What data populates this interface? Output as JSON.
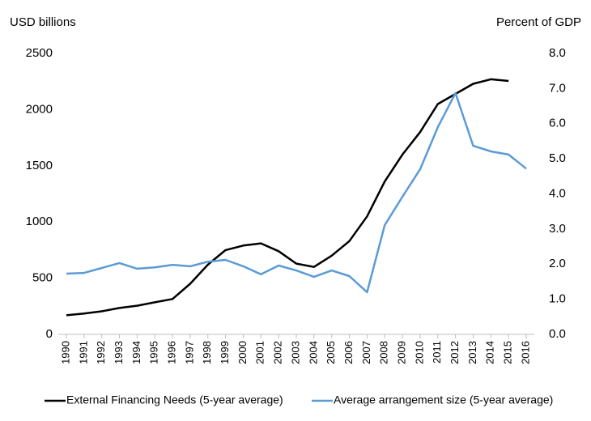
{
  "chart_data": {
    "type": "line",
    "y_label": "USD billions",
    "y2_label": "Percent of GDP",
    "categories": [
      "1990",
      "1991",
      "1992",
      "1993",
      "1994",
      "1995",
      "1996",
      "1997",
      "1998",
      "1999",
      "2000",
      "2001",
      "2002",
      "2003",
      "2004",
      "2005",
      "2006",
      "2007",
      "2008",
      "2009",
      "2010",
      "2011",
      "2012",
      "2013",
      "2014",
      "2015",
      "2016"
    ],
    "series": [
      {
        "name": "External Financing Needs (5-year average)",
        "color": "#000000",
        "axis": "y",
        "values": [
          170,
          185,
          205,
          235,
          255,
          285,
          315,
          450,
          620,
          750,
          790,
          810,
          740,
          630,
          600,
          700,
          830,
          1050,
          1360,
          1600,
          1800,
          2050,
          2140,
          2230,
          2270,
          2255,
          null
        ]
      },
      {
        "name": "Average arrangement size (5-year average)",
        "color": "#5b9bd5",
        "axis": "y2",
        "values": [
          1.73,
          1.75,
          1.89,
          2.03,
          1.87,
          1.91,
          1.98,
          1.94,
          2.07,
          2.12,
          1.94,
          1.71,
          1.96,
          1.82,
          1.64,
          1.82,
          1.66,
          1.2,
          3.11,
          3.92,
          4.7,
          5.9,
          6.87,
          5.37,
          5.21,
          5.12,
          4.72
        ]
      }
    ],
    "ylim": [
      0,
      2500
    ],
    "yticks": [
      0,
      500,
      1000,
      1500,
      2000,
      2500
    ],
    "y2lim": [
      0,
      8
    ],
    "y2ticks": [
      {
        "value": 0,
        "label": "0.0"
      },
      {
        "value": 1,
        "label": "1.0"
      },
      {
        "value": 2,
        "label": "2.0"
      },
      {
        "value": 3,
        "label": "3.0"
      },
      {
        "value": 4,
        "label": "4.0"
      },
      {
        "value": 5,
        "label": "5.0"
      },
      {
        "value": 6,
        "label": "6.0"
      },
      {
        "value": 7,
        "label": "7.0"
      },
      {
        "value": 8,
        "label": "8.0"
      }
    ],
    "legend": "bottom"
  }
}
